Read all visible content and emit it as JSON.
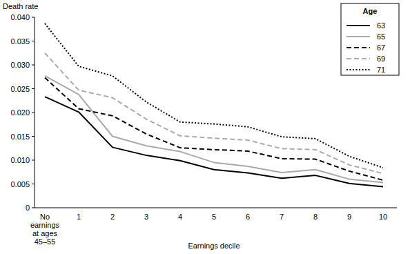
{
  "chart_data": {
    "type": "line",
    "y_label": "Death rate",
    "x_label": "Earnings decile",
    "legend_title": "Age",
    "legend": "top-right",
    "grid": false,
    "categories": [
      "No earnings at ages 45–55",
      "1",
      "2",
      "3",
      "4",
      "5",
      "6",
      "7",
      "8",
      "9",
      "10"
    ],
    "ylim": [
      0,
      0.04
    ],
    "yticks": [
      0,
      0.005,
      {
        "value": 0.01,
        "label": "0.010"
      },
      0.015,
      {
        "value": 0.02,
        "label": "0.020"
      },
      0.025,
      {
        "value": 0.03,
        "label": "0.030"
      },
      0.035,
      {
        "value": 0.04,
        "label": "0.040"
      }
    ],
    "series": [
      {
        "name": "63",
        "color": "#000000",
        "line_style": "solid",
        "values": [
          0.0233,
          0.0201,
          0.0127,
          0.011,
          0.0099,
          0.008,
          0.0073,
          0.0062,
          0.0068,
          0.0051,
          0.0044
        ]
      },
      {
        "name": "65",
        "color": "#aaaaaa",
        "line_style": "solid",
        "values": [
          0.0277,
          0.0238,
          0.015,
          0.013,
          0.0118,
          0.0095,
          0.0087,
          0.0074,
          0.008,
          0.006,
          0.0053
        ]
      },
      {
        "name": "67",
        "color": "#000000",
        "line_style": "dashed",
        "values": [
          0.0273,
          0.0208,
          0.0193,
          0.0155,
          0.0126,
          0.0122,
          0.0119,
          0.0103,
          0.0102,
          0.0077,
          0.0058
        ]
      },
      {
        "name": "69",
        "color": "#aaaaaa",
        "line_style": "dashed",
        "values": [
          0.0325,
          0.0247,
          0.0231,
          0.0186,
          0.0151,
          0.0146,
          0.0142,
          0.0124,
          0.0122,
          0.009,
          0.0072
        ]
      },
      {
        "name": "71",
        "color": "#000000",
        "line_style": "dotted",
        "values": [
          0.0387,
          0.0297,
          0.0277,
          0.0222,
          0.018,
          0.0176,
          0.017,
          0.0149,
          0.0145,
          0.0108,
          0.0084
        ]
      }
    ]
  }
}
